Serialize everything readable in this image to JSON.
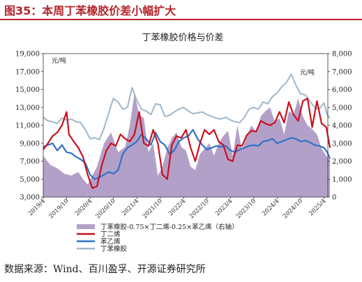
{
  "header": {
    "title": "图35：本周丁苯橡胶价差小幅扩大"
  },
  "footer": {
    "source": "数据来源：Wind、百川盈孚、开源证券研究所"
  },
  "colors": {
    "title_red": "#b5232b",
    "spread": "#b3a0c8",
    "butadiene": "#c8101e",
    "styrene": "#2f72c8",
    "sbr": "#9fb7c9"
  },
  "chart_data": {
    "type": "line",
    "title": "丁苯橡胶价格与价差",
    "left_unit": "元/吨",
    "right_unit": "元/吨",
    "y_left": {
      "ylim": [
        3000,
        19000
      ],
      "ticks": [
        "3,000",
        "5,000",
        "7,000",
        "9,000",
        "11,000",
        "13,000",
        "15,000",
        "17,000",
        "19,000"
      ]
    },
    "y_right": {
      "ylim": [
        0,
        8000
      ],
      "ticks": [
        "0",
        "1,000",
        "2,000",
        "3,000",
        "4,000",
        "5,000",
        "6,000",
        "7,000",
        "8,000"
      ]
    },
    "x_ticks": [
      "2019/4",
      "2019/10",
      "2020/4",
      "2020/10",
      "2021/4",
      "2021/10",
      "2022/4",
      "2022/10",
      "2023/4",
      "2023/10",
      "2024/4",
      "2024/10",
      "2025/4"
    ],
    "x_range": [
      "2019/4",
      "2025/5"
    ],
    "grid": false,
    "legend_position": "bottom",
    "series": [
      {
        "name": "丁苯橡胶-0.75×丁二烯-0.25×苯乙烯（右轴）",
        "type": "area",
        "axis": "right",
        "x": [
          2019.25,
          2019.4,
          2019.55,
          2019.7,
          2019.85,
          2020.0,
          2020.1,
          2020.2,
          2020.3,
          2020.4,
          2020.55,
          2020.7,
          2020.85,
          2021.0,
          2021.1,
          2021.2,
          2021.3,
          2021.4,
          2021.5,
          2021.6,
          2021.7,
          2021.8,
          2021.9,
          2022.0,
          2022.1,
          2022.2,
          2022.3,
          2022.4,
          2022.5,
          2022.6,
          2022.7,
          2022.8,
          2022.9,
          2023.0,
          2023.1,
          2023.2,
          2023.3,
          2023.4,
          2023.5,
          2023.6,
          2023.7,
          2023.8,
          2023.9,
          2024.0,
          2024.1,
          2024.2,
          2024.3,
          2024.4,
          2024.5,
          2024.6,
          2024.7,
          2024.8,
          2024.9,
          2025.0,
          2025.1,
          2025.2,
          2025.3,
          2025.38
        ],
        "values": [
          2300,
          1800,
          1600,
          1300,
          1200,
          1400,
          1000,
          700,
          1200,
          1700,
          3000,
          3600,
          2500,
          2800,
          4000,
          5800,
          4600,
          4400,
          2500,
          3000,
          1200,
          1700,
          2700,
          3300,
          3600,
          2800,
          2600,
          1700,
          1500,
          2400,
          2700,
          3000,
          2300,
          3000,
          3400,
          3700,
          2300,
          4000,
          2600,
          3400,
          4000,
          3600,
          4500,
          4800,
          5000,
          4200,
          4400,
          3500,
          4800,
          4600,
          5500,
          4500,
          4000,
          3800,
          3500,
          2700,
          2300,
          2100
        ]
      },
      {
        "name": "丁二烯",
        "type": "line",
        "axis": "left",
        "x": [
          2019.25,
          2019.35,
          2019.45,
          2019.55,
          2019.65,
          2019.75,
          2019.8,
          2019.9,
          2020.0,
          2020.1,
          2020.2,
          2020.3,
          2020.4,
          2020.5,
          2020.6,
          2020.7,
          2020.8,
          2020.9,
          2021.0,
          2021.1,
          2021.2,
          2021.3,
          2021.4,
          2021.5,
          2021.6,
          2021.7,
          2021.8,
          2021.9,
          2022.0,
          2022.1,
          2022.2,
          2022.3,
          2022.4,
          2022.5,
          2022.6,
          2022.7,
          2022.8,
          2022.9,
          2023.0,
          2023.1,
          2023.2,
          2023.3,
          2023.4,
          2023.5,
          2023.6,
          2023.7,
          2023.8,
          2023.9,
          2024.0,
          2024.1,
          2024.2,
          2024.3,
          2024.4,
          2024.5,
          2024.6,
          2024.7,
          2024.8,
          2024.9,
          2025.0,
          2025.1,
          2025.2,
          2025.3,
          2025.38
        ],
        "values": [
          8300,
          9000,
          9800,
          10200,
          11000,
          12500,
          10000,
          9200,
          8500,
          7500,
          5500,
          4000,
          4200,
          6500,
          8200,
          9000,
          8700,
          10000,
          9500,
          9200,
          10000,
          12500,
          9000,
          8700,
          10500,
          9000,
          5500,
          5000,
          8800,
          9800,
          9600,
          10500,
          8500,
          7000,
          9000,
          10500,
          10000,
          10500,
          9200,
          8800,
          7200,
          7000,
          8800,
          8700,
          9900,
          10400,
          10300,
          11500,
          11200,
          11000,
          11300,
          12500,
          11300,
          13600,
          12200,
          11500,
          13700,
          14000,
          10800,
          13700,
          11200,
          10800,
          8500
        ]
      },
      {
        "name": "苯乙烯",
        "type": "line",
        "axis": "left",
        "x": [
          2019.25,
          2019.35,
          2019.45,
          2019.55,
          2019.65,
          2019.75,
          2019.85,
          2019.95,
          2020.05,
          2020.15,
          2020.25,
          2020.35,
          2020.45,
          2020.55,
          2020.65,
          2020.75,
          2020.85,
          2020.95,
          2021.05,
          2021.15,
          2021.25,
          2021.35,
          2021.45,
          2021.55,
          2021.65,
          2021.75,
          2021.85,
          2021.95,
          2022.05,
          2022.15,
          2022.25,
          2022.35,
          2022.45,
          2022.55,
          2022.65,
          2022.75,
          2022.85,
          2022.95,
          2023.05,
          2023.15,
          2023.25,
          2023.35,
          2023.45,
          2023.55,
          2023.65,
          2023.75,
          2023.85,
          2023.95,
          2024.05,
          2024.15,
          2024.25,
          2024.35,
          2024.45,
          2024.55,
          2024.65,
          2024.75,
          2024.85,
          2024.95,
          2025.05,
          2025.15,
          2025.25,
          2025.32,
          2025.38
        ],
        "values": [
          8600,
          8800,
          9000,
          8200,
          8800,
          8000,
          7900,
          7500,
          7200,
          6800,
          5500,
          5000,
          5200,
          5500,
          5800,
          5600,
          6000,
          7800,
          8500,
          8800,
          9200,
          10000,
          9500,
          8800,
          10200,
          9200,
          8800,
          7800,
          8200,
          9200,
          9600,
          9800,
          10500,
          9500,
          8800,
          8300,
          8500,
          8700,
          8600,
          8700,
          8200,
          8000,
          8300,
          8500,
          8700,
          8800,
          8700,
          9200,
          9300,
          9500,
          9000,
          9200,
          9400,
          9600,
          9500,
          9200,
          9300,
          9100,
          8800,
          8700,
          8500,
          8000,
          7300
        ]
      },
      {
        "name": "丁苯橡胶",
        "type": "line",
        "axis": "left",
        "x": [
          2019.25,
          2019.35,
          2019.45,
          2019.55,
          2019.65,
          2019.75,
          2019.85,
          2019.95,
          2020.05,
          2020.15,
          2020.25,
          2020.35,
          2020.45,
          2020.55,
          2020.65,
          2020.75,
          2020.85,
          2020.95,
          2021.05,
          2021.15,
          2021.25,
          2021.35,
          2021.45,
          2021.55,
          2021.65,
          2021.75,
          2021.85,
          2021.95,
          2022.05,
          2022.15,
          2022.25,
          2022.35,
          2022.45,
          2022.55,
          2022.65,
          2022.75,
          2022.85,
          2022.95,
          2023.05,
          2023.15,
          2023.25,
          2023.35,
          2023.45,
          2023.55,
          2023.65,
          2023.75,
          2023.85,
          2023.95,
          2024.05,
          2024.15,
          2024.25,
          2024.35,
          2024.45,
          2024.55,
          2024.65,
          2024.75,
          2024.85,
          2024.95,
          2025.05,
          2025.15,
          2025.25,
          2025.32,
          2025.38
        ],
        "values": [
          11900,
          11500,
          11400,
          11200,
          11800,
          11600,
          11700,
          11400,
          11300,
          10500,
          9500,
          9600,
          9400,
          10700,
          12400,
          14000,
          13600,
          12800,
          13000,
          15200,
          13800,
          12800,
          12600,
          12200,
          13400,
          13300,
          12000,
          12100,
          12500,
          12800,
          13000,
          12600,
          12300,
          12400,
          12500,
          12200,
          12000,
          11800,
          11700,
          11900,
          11600,
          11400,
          11300,
          11900,
          12800,
          13000,
          12800,
          13600,
          13400,
          14200,
          14600,
          15300,
          15800,
          16700,
          15500,
          14500,
          14400,
          13700,
          13000,
          12800,
          13500,
          12200,
          11800
        ]
      }
    ]
  }
}
